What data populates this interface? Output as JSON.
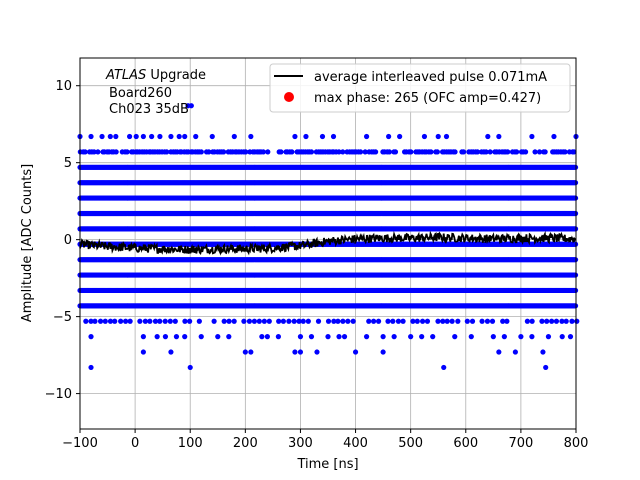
{
  "chart_data": {
    "type": "scatter",
    "xlabel": "Time [ns]",
    "ylabel": "Amplitude [ADC Counts]",
    "xlim": [
      -100,
      800
    ],
    "ylim": [
      -12.3,
      11.8
    ],
    "xticks": [
      -100,
      0,
      100,
      200,
      300,
      400,
      500,
      600,
      700,
      800
    ],
    "yticks": [
      -10,
      -5,
      0,
      5,
      10
    ],
    "xtick_labels": [
      "−100",
      "0",
      "100",
      "200",
      "300",
      "400",
      "500",
      "600",
      "700",
      "800"
    ],
    "ytick_labels": [
      "−10",
      "−5",
      "0",
      "5",
      "10"
    ],
    "grid": true,
    "legend_placement": "top-right",
    "annotation": {
      "line1_italic": "ATLAS",
      "line1_rest": " Upgrade",
      "line2": "Board260",
      "line3": "Ch023 35dB"
    },
    "legend": [
      {
        "label": "average interleaved pulse 0.071mA",
        "marker": "line",
        "color": "#000000"
      },
      {
        "label": "max phase: 265 (OFC amp=0.427)",
        "marker": "dot",
        "color": "#ff0000"
      }
    ],
    "series": [
      {
        "kind": "scatter",
        "color": "#0000ff",
        "levels": [
          {
            "y": 8.7,
            "x": [
              96,
              102
            ]
          },
          {
            "y": 6.7,
            "x": [
              -100,
              -80,
              -60,
              -45,
              -35,
              -10,
              2,
              15,
              30,
              45,
              65,
              80,
              90,
              110,
              140,
              180,
              210,
              290,
              310,
              340,
              360,
              420,
              460,
              480,
              525,
              550,
              565,
              640,
              660,
              720,
              760,
              800
            ]
          },
          {
            "y": 5.7,
            "density": "dense"
          },
          {
            "y": 4.7,
            "density": "full"
          },
          {
            "y": 3.7,
            "density": "full"
          },
          {
            "y": 2.7,
            "density": "full"
          },
          {
            "y": 1.7,
            "density": "full"
          },
          {
            "y": 0.7,
            "density": "full"
          },
          {
            "y": -0.3,
            "density": "full"
          },
          {
            "y": -1.3,
            "density": "full"
          },
          {
            "y": -2.3,
            "density": "full"
          },
          {
            "y": -3.3,
            "density": "full"
          },
          {
            "y": -4.3,
            "density": "full"
          },
          {
            "y": -5.3,
            "density": "sparse"
          },
          {
            "y": -6.3,
            "x": [
              -80,
              15,
              40,
              55,
              75,
              90,
              120,
              150,
              170,
              230,
              240,
              260,
              300,
              320,
              350,
              370,
              380,
              420,
              450,
              470,
              500,
              520,
              540,
              580,
              610,
              650,
              670,
              700,
              720,
              750,
              775,
              790
            ]
          },
          {
            "y": -7.3,
            "x": [
              15,
              65,
              200,
              210,
              290,
              300,
              330,
              400,
              450,
              660,
              690,
              740
            ]
          },
          {
            "y": -8.3,
            "x": [
              -80,
              100,
              560,
              745
            ]
          }
        ]
      },
      {
        "kind": "line",
        "name": "average interleaved pulse 0.071mA",
        "color": "#000000",
        "x": [
          -100,
          -50,
          0,
          50,
          100,
          150,
          200,
          250,
          300,
          350,
          400,
          450,
          500,
          550,
          600,
          650,
          700,
          750,
          800
        ],
        "y": [
          -0.3,
          -0.45,
          -0.55,
          -0.6,
          -0.65,
          -0.6,
          -0.6,
          -0.55,
          -0.4,
          -0.1,
          0.05,
          0.1,
          0.1,
          0.15,
          0.1,
          0.05,
          0.1,
          0.1,
          0.05
        ]
      },
      {
        "kind": "marker",
        "name": "max phase: 265 (OFC amp=0.427)",
        "color": "#ff0000",
        "x": [
          265
        ],
        "y": [
          0.427
        ]
      }
    ]
  }
}
